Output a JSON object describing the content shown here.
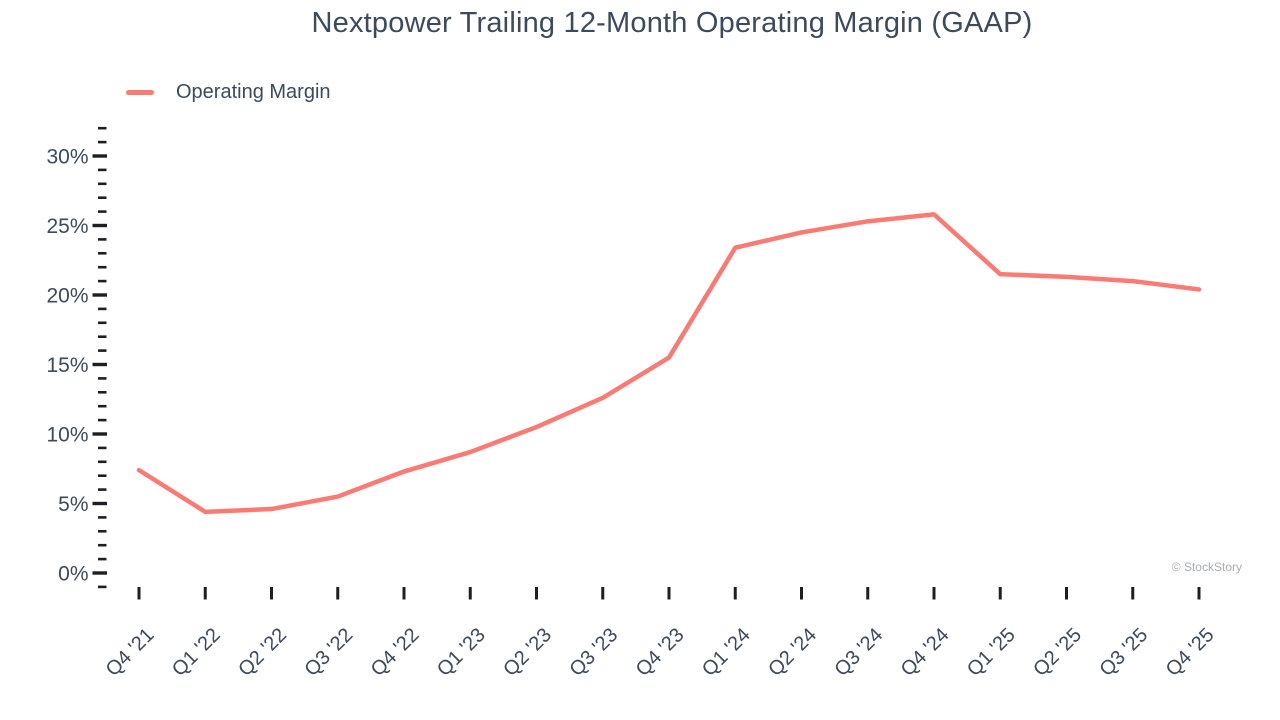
{
  "page": {
    "title": "Nextpower Trailing 12-Month Operating Margin (GAAP)",
    "copyright": "© StockStory"
  },
  "legend": {
    "label": "Operating Margin",
    "swatch_color": "#FA7B74"
  },
  "chart_data": {
    "type": "line",
    "title": "Nextpower Trailing 12-Month Operating Margin (GAAP)",
    "categories": [
      "Q4 '21",
      "Q1 '22",
      "Q2 '22",
      "Q3 '22",
      "Q4 '22",
      "Q1 '23",
      "Q2 '23",
      "Q3 '23",
      "Q4 '23",
      "Q1 '24",
      "Q2 '24",
      "Q3 '24",
      "Q4 '24",
      "Q1 '25",
      "Q2 '25",
      "Q3 '25",
      "Q4 '25"
    ],
    "series": [
      {
        "name": "Operating Margin",
        "color": "#FA7B74",
        "values": [
          7.4,
          4.4,
          4.6,
          5.5,
          7.3,
          8.7,
          10.5,
          12.6,
          15.5,
          23.4,
          24.5,
          25.3,
          25.8,
          21.5,
          21.3,
          21.0,
          20.4
        ]
      }
    ],
    "unit": "%",
    "xlabel": "",
    "ylabel": "",
    "ylim": [
      -1,
      32
    ],
    "y_major_ticks": [
      0,
      5,
      10,
      15,
      20,
      25,
      30
    ],
    "y_minor_tick_step": 1,
    "y_tick_suffix": "%",
    "grid": false,
    "legend_position": "top-left",
    "axis_text_color": "#3D4A5C",
    "tick_color": "#1C2025"
  }
}
